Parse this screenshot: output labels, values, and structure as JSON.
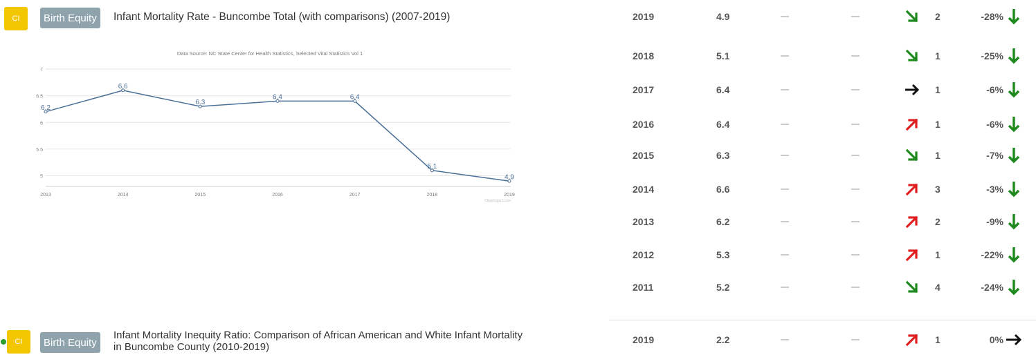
{
  "indicators": [
    {
      "badge": "CI",
      "tag": "Birth Equity",
      "title": "Infant Mortality Rate - Buncombe Total (with comparisons) (2007-2019)"
    },
    {
      "badge": "CI",
      "tag": "Birth Equity",
      "title_line1": "Infant Mortality Inequity Ratio: Comparison of African American and White Infant Mortality",
      "title_line2": "in Buncombe County (2010-2019)"
    }
  ],
  "chart_data": {
    "type": "line",
    "title": "Data Source: NC State Center for Health Statistics, Selected Vital Statistics Vol 1",
    "x": [
      "2013",
      "2014",
      "2015",
      "2016",
      "2017",
      "2018",
      "2019"
    ],
    "values": [
      6.2,
      6.6,
      6.3,
      6.4,
      6.4,
      5.1,
      4.9
    ],
    "y_ticks": [
      "7",
      "6.5",
      "6",
      "5.5",
      "5"
    ],
    "ylim": [
      4.8,
      7.0
    ],
    "grid": true,
    "credit": "ClearImpact.com",
    "line_color": "#4a6f96"
  },
  "table_rows": [
    {
      "year": "2019",
      "value": "4.9",
      "dash1": "—",
      "dash2": "—",
      "arrow": "down-right",
      "count": "2",
      "pct": "-28%",
      "trend": "down"
    },
    {
      "year": "2018",
      "value": "5.1",
      "dash1": "—",
      "dash2": "—",
      "arrow": "down-right",
      "count": "1",
      "pct": "-25%",
      "trend": "down"
    },
    {
      "year": "2017",
      "value": "6.4",
      "dash1": "—",
      "dash2": "—",
      "arrow": "right",
      "count": "1",
      "pct": "-6%",
      "trend": "down"
    },
    {
      "year": "2016",
      "value": "6.4",
      "dash1": "—",
      "dash2": "—",
      "arrow": "up-right",
      "count": "1",
      "pct": "-6%",
      "trend": "down"
    },
    {
      "year": "2015",
      "value": "6.3",
      "dash1": "—",
      "dash2": "—",
      "arrow": "down-right",
      "count": "1",
      "pct": "-7%",
      "trend": "down"
    },
    {
      "year": "2014",
      "value": "6.6",
      "dash1": "—",
      "dash2": "—",
      "arrow": "up-right",
      "count": "3",
      "pct": "-3%",
      "trend": "down"
    },
    {
      "year": "2013",
      "value": "6.2",
      "dash1": "—",
      "dash2": "—",
      "arrow": "up-right",
      "count": "2",
      "pct": "-9%",
      "trend": "down"
    },
    {
      "year": "2012",
      "value": "5.3",
      "dash1": "—",
      "dash2": "—",
      "arrow": "up-right",
      "count": "1",
      "pct": "-22%",
      "trend": "down"
    },
    {
      "year": "2011",
      "value": "5.2",
      "dash1": "—",
      "dash2": "—",
      "arrow": "down-right",
      "count": "4",
      "pct": "-24%",
      "trend": "down"
    },
    {
      "year": "2019",
      "value": "2.2",
      "dash1": "—",
      "dash2": "—",
      "arrow": "up-right",
      "count": "1",
      "pct": "0%",
      "trend": "flat"
    }
  ],
  "colors": {
    "green": "#1e8a1e",
    "red": "#e02020",
    "black": "#111111",
    "badge": "#f2c600",
    "tag": "#8fa3ad"
  }
}
